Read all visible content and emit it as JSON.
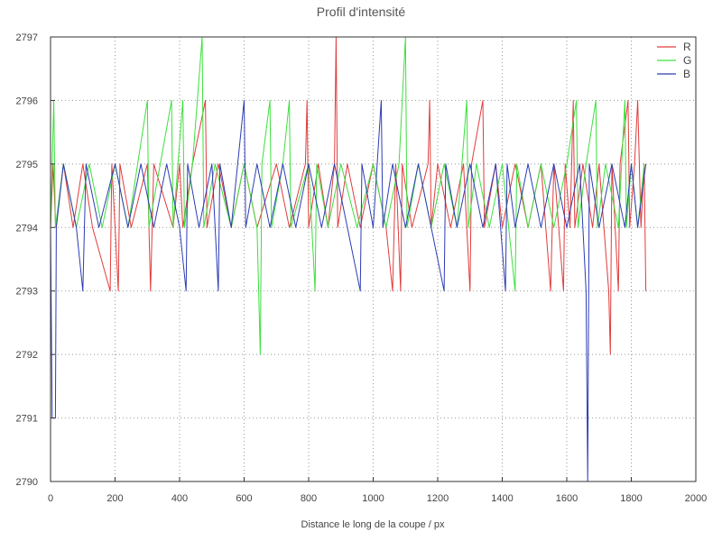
{
  "chart_data": {
    "type": "line",
    "title": "Profil d'intensité",
    "xlabel": "Distance le long de la coupe / px",
    "ylabel": "",
    "xlim": [
      0,
      2000
    ],
    "ylim": [
      2790,
      2797
    ],
    "xticks": [
      0,
      200,
      400,
      600,
      800,
      1000,
      1200,
      1400,
      1600,
      1800,
      2000
    ],
    "yticks": [
      2790,
      2791,
      2792,
      2793,
      2794,
      2795,
      2796,
      2797
    ],
    "grid": true,
    "legend_position": "top-right",
    "series": [
      {
        "name": "R",
        "color": "#e03c3c",
        "points": [
          [
            0,
            2794
          ],
          [
            8,
            2795
          ],
          [
            16,
            2794
          ],
          [
            40,
            2795
          ],
          [
            70,
            2794
          ],
          [
            100,
            2795
          ],
          [
            130,
            2794
          ],
          [
            185,
            2793
          ],
          [
            190,
            2795
          ],
          [
            210,
            2793
          ],
          [
            215,
            2795
          ],
          [
            250,
            2794
          ],
          [
            300,
            2795
          ],
          [
            310,
            2793
          ],
          [
            320,
            2795
          ],
          [
            380,
            2794
          ],
          [
            400,
            2795
          ],
          [
            410,
            2794
          ],
          [
            440,
            2795
          ],
          [
            480,
            2796
          ],
          [
            485,
            2794
          ],
          [
            520,
            2795
          ],
          [
            560,
            2794
          ],
          [
            600,
            2795
          ],
          [
            640,
            2794
          ],
          [
            700,
            2795
          ],
          [
            740,
            2794
          ],
          [
            790,
            2795
          ],
          [
            795,
            2796
          ],
          [
            800,
            2794
          ],
          [
            830,
            2795
          ],
          [
            860,
            2794
          ],
          [
            880,
            2795
          ],
          [
            885,
            2797
          ],
          [
            890,
            2794
          ],
          [
            920,
            2795
          ],
          [
            960,
            2794
          ],
          [
            1000,
            2795
          ],
          [
            1040,
            2794
          ],
          [
            1060,
            2793
          ],
          [
            1070,
            2795
          ],
          [
            1085,
            2793
          ],
          [
            1090,
            2795
          ],
          [
            1120,
            2794
          ],
          [
            1170,
            2795
          ],
          [
            1175,
            2796
          ],
          [
            1180,
            2794
          ],
          [
            1200,
            2795
          ],
          [
            1240,
            2794
          ],
          [
            1280,
            2795
          ],
          [
            1300,
            2793
          ],
          [
            1305,
            2795
          ],
          [
            1340,
            2796
          ],
          [
            1345,
            2794
          ],
          [
            1380,
            2795
          ],
          [
            1400,
            2794
          ],
          [
            1440,
            2795
          ],
          [
            1480,
            2794
          ],
          [
            1520,
            2795
          ],
          [
            1550,
            2793
          ],
          [
            1560,
            2795
          ],
          [
            1590,
            2793
          ],
          [
            1595,
            2795
          ],
          [
            1610,
            2794
          ],
          [
            1620,
            2796
          ],
          [
            1625,
            2794
          ],
          [
            1650,
            2795
          ],
          [
            1680,
            2794
          ],
          [
            1700,
            2795
          ],
          [
            1730,
            2793
          ],
          [
            1735,
            2792
          ],
          [
            1740,
            2795
          ],
          [
            1760,
            2793
          ],
          [
            1765,
            2795
          ],
          [
            1790,
            2796
          ],
          [
            1795,
            2794
          ],
          [
            1810,
            2795
          ],
          [
            1820,
            2796
          ],
          [
            1830,
            2794
          ],
          [
            1840,
            2795
          ],
          [
            1845,
            2793
          ]
        ]
      },
      {
        "name": "G",
        "color": "#3ce03c",
        "points": [
          [
            0,
            2794
          ],
          [
            10,
            2796
          ],
          [
            15,
            2794
          ],
          [
            40,
            2795
          ],
          [
            80,
            2794
          ],
          [
            120,
            2795
          ],
          [
            160,
            2794
          ],
          [
            200,
            2795
          ],
          [
            240,
            2794
          ],
          [
            270,
            2795
          ],
          [
            300,
            2796
          ],
          [
            305,
            2794
          ],
          [
            340,
            2795
          ],
          [
            375,
            2796
          ],
          [
            380,
            2794
          ],
          [
            410,
            2796
          ],
          [
            415,
            2794
          ],
          [
            440,
            2795
          ],
          [
            470,
            2797
          ],
          [
            475,
            2794
          ],
          [
            510,
            2795
          ],
          [
            560,
            2794
          ],
          [
            600,
            2795
          ],
          [
            640,
            2794
          ],
          [
            650,
            2792
          ],
          [
            655,
            2795
          ],
          [
            680,
            2796
          ],
          [
            685,
            2794
          ],
          [
            720,
            2795
          ],
          [
            740,
            2796
          ],
          [
            745,
            2794
          ],
          [
            800,
            2795
          ],
          [
            820,
            2793
          ],
          [
            825,
            2795
          ],
          [
            860,
            2794
          ],
          [
            900,
            2795
          ],
          [
            950,
            2794
          ],
          [
            1000,
            2795
          ],
          [
            1040,
            2794
          ],
          [
            1080,
            2795
          ],
          [
            1100,
            2797
          ],
          [
            1105,
            2794
          ],
          [
            1140,
            2795
          ],
          [
            1180,
            2794
          ],
          [
            1220,
            2795
          ],
          [
            1260,
            2794
          ],
          [
            1290,
            2796
          ],
          [
            1295,
            2794
          ],
          [
            1320,
            2795
          ],
          [
            1360,
            2794
          ],
          [
            1400,
            2795
          ],
          [
            1440,
            2793
          ],
          [
            1445,
            2795
          ],
          [
            1480,
            2794
          ],
          [
            1520,
            2795
          ],
          [
            1560,
            2794
          ],
          [
            1600,
            2795
          ],
          [
            1630,
            2796
          ],
          [
            1635,
            2794
          ],
          [
            1660,
            2795
          ],
          [
            1690,
            2796
          ],
          [
            1695,
            2794
          ],
          [
            1720,
            2795
          ],
          [
            1760,
            2794
          ],
          [
            1780,
            2796
          ],
          [
            1785,
            2794
          ],
          [
            1800,
            2795
          ],
          [
            1820,
            2794
          ],
          [
            1840,
            2795
          ]
        ]
      },
      {
        "name": "B",
        "color": "#2c3cb4",
        "points": [
          [
            0,
            2794
          ],
          [
            5,
            2791
          ],
          [
            15,
            2791
          ],
          [
            18,
            2794
          ],
          [
            40,
            2795
          ],
          [
            80,
            2794
          ],
          [
            100,
            2793
          ],
          [
            110,
            2795
          ],
          [
            150,
            2794
          ],
          [
            200,
            2795
          ],
          [
            240,
            2794
          ],
          [
            280,
            2795
          ],
          [
            320,
            2794
          ],
          [
            360,
            2795
          ],
          [
            400,
            2794
          ],
          [
            420,
            2793
          ],
          [
            425,
            2795
          ],
          [
            460,
            2794
          ],
          [
            500,
            2795
          ],
          [
            520,
            2793
          ],
          [
            525,
            2795
          ],
          [
            560,
            2794
          ],
          [
            600,
            2796
          ],
          [
            605,
            2794
          ],
          [
            640,
            2795
          ],
          [
            680,
            2794
          ],
          [
            720,
            2795
          ],
          [
            760,
            2794
          ],
          [
            800,
            2795
          ],
          [
            840,
            2794
          ],
          [
            880,
            2795
          ],
          [
            920,
            2794
          ],
          [
            960,
            2793
          ],
          [
            965,
            2795
          ],
          [
            1000,
            2794
          ],
          [
            1025,
            2796
          ],
          [
            1030,
            2794
          ],
          [
            1060,
            2795
          ],
          [
            1100,
            2794
          ],
          [
            1140,
            2795
          ],
          [
            1180,
            2794
          ],
          [
            1220,
            2793
          ],
          [
            1225,
            2795
          ],
          [
            1260,
            2794
          ],
          [
            1300,
            2795
          ],
          [
            1340,
            2794
          ],
          [
            1380,
            2795
          ],
          [
            1410,
            2793
          ],
          [
            1415,
            2795
          ],
          [
            1440,
            2794
          ],
          [
            1480,
            2795
          ],
          [
            1520,
            2794
          ],
          [
            1560,
            2795
          ],
          [
            1600,
            2794
          ],
          [
            1640,
            2795
          ],
          [
            1660,
            2793
          ],
          [
            1665,
            2790
          ],
          [
            1670,
            2795
          ],
          [
            1700,
            2794
          ],
          [
            1740,
            2795
          ],
          [
            1780,
            2794
          ],
          [
            1800,
            2795
          ],
          [
            1820,
            2794
          ],
          [
            1845,
            2795
          ]
        ]
      }
    ]
  }
}
